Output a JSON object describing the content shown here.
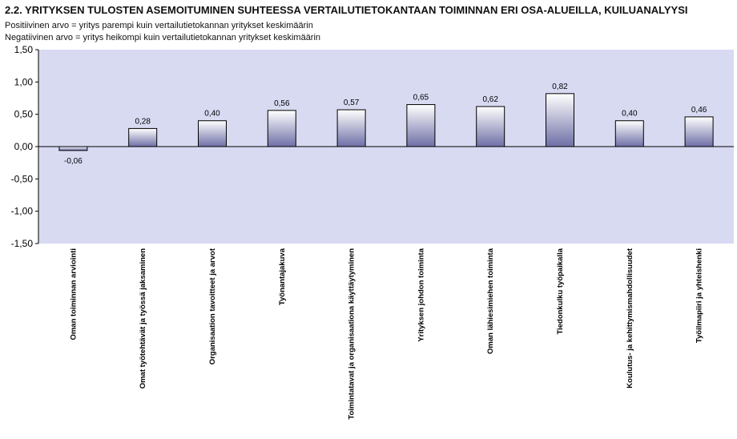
{
  "header": {
    "title": "2.2. YRITYKSEN TULOSTEN ASEMOITUMINEN SUHTEESSA VERTAILUTIETOKANTAAN TOIMINNAN ERI OSA-ALUEILLA, KUILUANALYYSI",
    "subtitle_positive": "Positiivinen arvo = yritys parempi kuin vertailutietokannan yritykset keskimäärin",
    "subtitle_negative": "Negatiivinen arvo = yritys heikompi kuin vertailutietokannan yritykset keskimäärin"
  },
  "colors": {
    "plot_background": "#D8DAF2",
    "bar_top": "#FFFFFF",
    "bar_bottom": "#6E6FA6",
    "bar_border": "#000000",
    "zero_line": "#000000"
  },
  "chart_data": {
    "type": "bar",
    "categories": [
      "Oman toiminnan arviointi",
      "Omat työtehtävät ja työssä jaksaminen",
      "Organisaation tavoitteet ja arvot",
      "Työnantajakuva",
      "Toimintatavat ja organisaationa käyttäytyminen",
      "Yrityksen johdon toiminta",
      "Oman lähiesimiehen toiminta",
      "Tiedonkulku työpaikalla",
      "Koulutus- ja kehittymismahdollisuudet",
      "Työilmapiiri ja yhteishenki"
    ],
    "values": [
      -0.06,
      0.28,
      0.4,
      0.56,
      0.57,
      0.65,
      0.62,
      0.82,
      0.4,
      0.46
    ],
    "value_labels": [
      "-0,06",
      "0,28",
      "0,40",
      "0,56",
      "0,57",
      "0,65",
      "0,62",
      "0,82",
      "0,40",
      "0,46"
    ],
    "ylim": [
      -1.5,
      1.5
    ],
    "y_ticks": [
      1.5,
      1.0,
      0.5,
      0.0,
      -0.5,
      -1.0,
      -1.5
    ],
    "y_tick_labels": [
      "1,50",
      "1,00",
      "0,50",
      "0,00",
      "-0,50",
      "-1,00",
      "-1,50"
    ],
    "grid": false,
    "legend": "none",
    "xlabel": "",
    "ylabel": ""
  }
}
